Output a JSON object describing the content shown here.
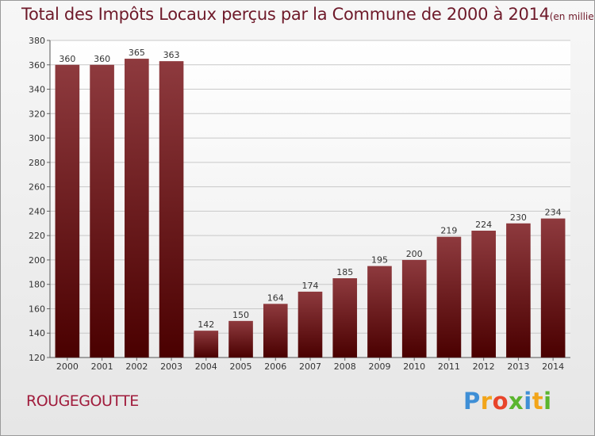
{
  "title": "Total des Impôts Locaux perçus par la Commune de 2000 à 2014",
  "title_unit": "(en milliers d'€)",
  "commune": "ROUGEGOUTTE",
  "logo": [
    "P",
    "r",
    "o",
    "x",
    "i",
    "t",
    "i"
  ],
  "colors": {
    "title": "#6e1a2a",
    "bar_top": "#8e3a3e",
    "bar_bottom": "#4a0000",
    "commune": "#a01c3c"
  },
  "chart_data": {
    "type": "bar",
    "categories": [
      "2000",
      "2001",
      "2002",
      "2003",
      "2004",
      "2005",
      "2006",
      "2007",
      "2008",
      "2009",
      "2010",
      "2011",
      "2012",
      "2013",
      "2014"
    ],
    "values": [
      360,
      360,
      365,
      363,
      142,
      150,
      164,
      174,
      185,
      195,
      200,
      219,
      224,
      230,
      234
    ],
    "ylim": [
      120,
      380
    ],
    "yticks": [
      120,
      140,
      160,
      180,
      200,
      220,
      240,
      260,
      280,
      300,
      320,
      340,
      360,
      380
    ],
    "grid": true
  }
}
